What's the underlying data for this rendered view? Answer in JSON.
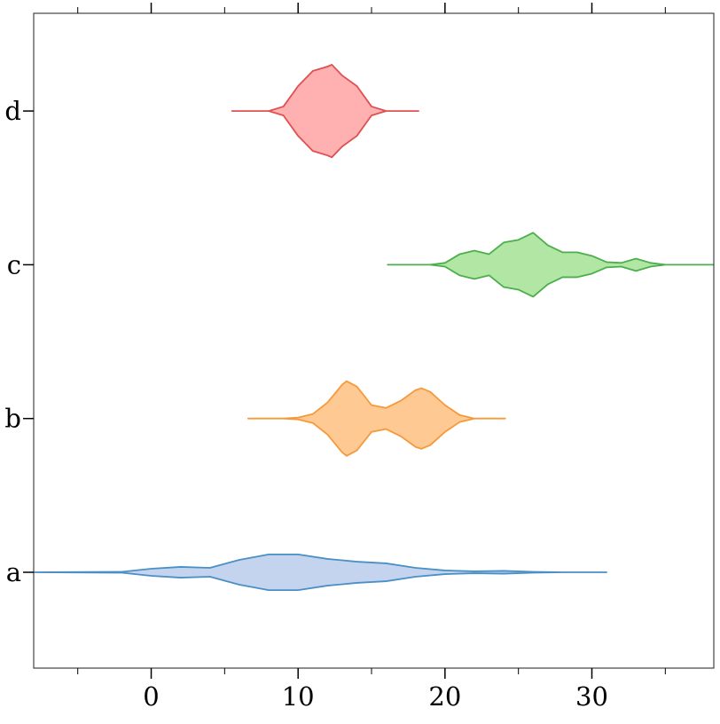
{
  "chart_data": {
    "type": "violin",
    "orientation": "horizontal",
    "categories": [
      "a",
      "b",
      "c",
      "d"
    ],
    "series": [
      {
        "color": "#4a8fc6",
        "fill": "#c4d4ee",
        "x": [
          -8,
          -2,
          0,
          2,
          4,
          6,
          8,
          10,
          12,
          14,
          16,
          18,
          20,
          22,
          24,
          26,
          28,
          31
        ],
        "widths": [
          0,
          0.003,
          0.023,
          0.035,
          0.029,
          0.081,
          0.116,
          0.116,
          0.087,
          0.069,
          0.058,
          0.029,
          0.012,
          0.006,
          0.009,
          0.003,
          0,
          0
        ]
      },
      {
        "color": "#f5993a",
        "fill": "#ffc994",
        "x": [
          6.6,
          9,
          10,
          11,
          12,
          13,
          13.3,
          14,
          15,
          16,
          17,
          18,
          18.4,
          19,
          20,
          21,
          22,
          24.1
        ],
        "widths": [
          0,
          0,
          0.006,
          0.029,
          0.104,
          0.22,
          0.243,
          0.208,
          0.087,
          0.069,
          0.116,
          0.185,
          0.197,
          0.173,
          0.087,
          0.023,
          0,
          0
        ]
      },
      {
        "color": "#4cae4c",
        "fill": "#b2e6a4",
        "x": [
          16.1,
          19,
          20,
          21,
          22,
          23,
          24,
          25,
          26,
          27,
          28,
          29,
          30,
          31,
          32,
          33,
          34,
          35,
          38.3
        ],
        "widths": [
          0,
          0,
          0.012,
          0.069,
          0.092,
          0.069,
          0.145,
          0.162,
          0.208,
          0.127,
          0.081,
          0.081,
          0.058,
          0.017,
          0.012,
          0.04,
          0.012,
          0,
          0
        ]
      },
      {
        "color": "#e05050",
        "fill": "#ffb0b0",
        "x": [
          5.5,
          8,
          9,
          10,
          11,
          12,
          12.3,
          13,
          14,
          15,
          16,
          18.2
        ],
        "widths": [
          0,
          0,
          0.029,
          0.162,
          0.26,
          0.289,
          0.301,
          0.231,
          0.162,
          0.029,
          0,
          0
        ]
      }
    ],
    "xlim": [
      -8,
      38.3
    ],
    "xticks": [
      0,
      10,
      20,
      30
    ],
    "xminorticks": [
      -5,
      5,
      15,
      25,
      35
    ]
  }
}
